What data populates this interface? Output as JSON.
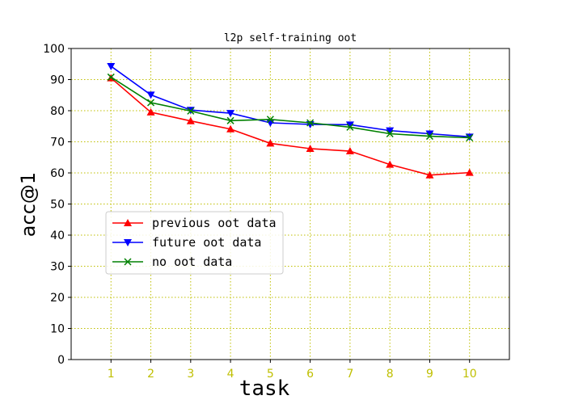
{
  "chart_data": {
    "type": "line",
    "title": "l2p self-training oot",
    "xlabel": "task",
    "ylabel": "acc@1",
    "x": [
      1,
      2,
      3,
      4,
      5,
      6,
      7,
      8,
      9,
      10
    ],
    "xlim": [
      0,
      11
    ],
    "ylim": [
      0,
      100
    ],
    "yticks": [
      0,
      10,
      20,
      30,
      40,
      50,
      60,
      70,
      80,
      90,
      100
    ],
    "grid": true,
    "grid_color": "#bfbf00",
    "xtick_color": "#bfbf00",
    "legend_position": "center-left",
    "series": [
      {
        "name": "previous oot data",
        "color": "#ff0000",
        "marker": "triangle-up-icon",
        "values": [
          90.5,
          79.5,
          76.7,
          74.1,
          69.5,
          67.8,
          67.0,
          62.7,
          59.3,
          60.1
        ]
      },
      {
        "name": "future oot data",
        "color": "#0000ff",
        "marker": "triangle-down-icon",
        "values": [
          94.3,
          85.1,
          80.2,
          79.2,
          76.1,
          75.6,
          75.5,
          73.6,
          72.6,
          71.6
        ]
      },
      {
        "name": "no oot data",
        "color": "#008000",
        "marker": "x-cross-icon",
        "values": [
          90.8,
          82.6,
          79.9,
          76.8,
          77.2,
          76.1,
          74.7,
          72.6,
          71.8,
          71.3
        ]
      }
    ]
  }
}
